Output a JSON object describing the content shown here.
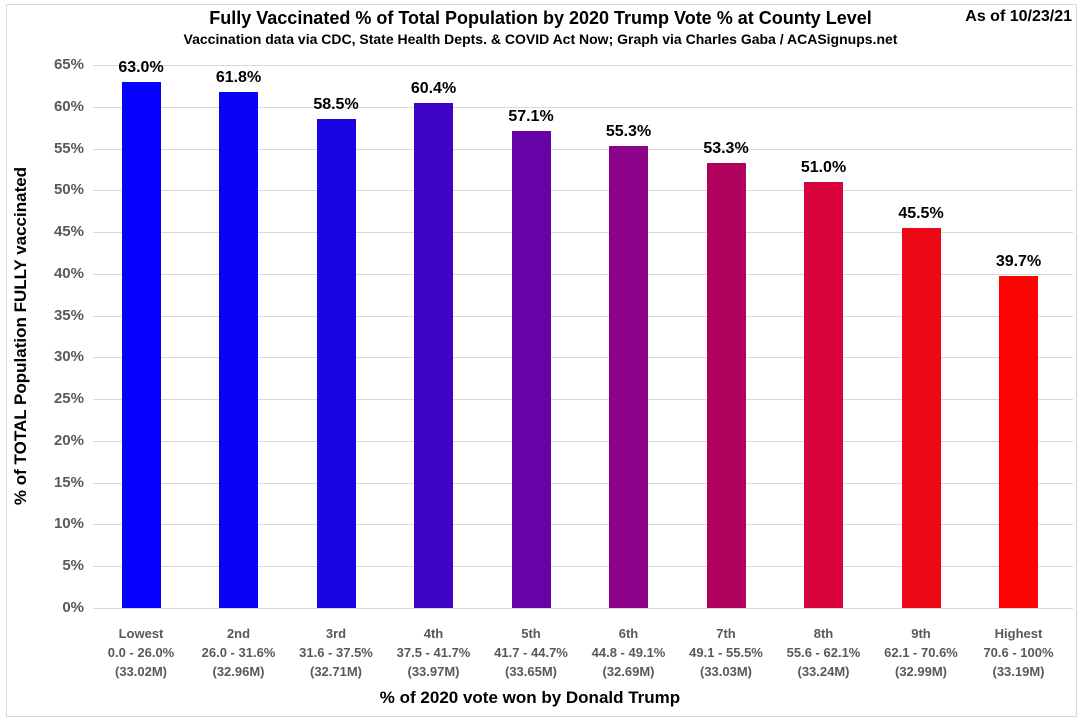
{
  "header": {
    "title": "Fully Vaccinated % of Total Population by 2020 Trump Vote % at County Level",
    "subtitle": "Vaccination data via CDC, State Health Depts. & COVID Act Now; Graph via Charles Gaba / ACASignups.net",
    "as_of": "As of 10/23/21"
  },
  "chart_data": {
    "type": "bar",
    "title": "Fully Vaccinated % of Total Population by 2020 Trump Vote % at County Level",
    "subtitle": "Vaccination data via CDC, State Health Depts. & COVID Act Now; Graph via Charles Gaba / ACASignups.net",
    "as_of": "As of 10/23/21",
    "xlabel": "% of 2020 vote won by Donald Trump",
    "ylabel": "% of TOTAL Population FULLY vaccinated",
    "ylim": [
      0,
      65
    ],
    "ytick_step": 5,
    "yticks": [
      "0%",
      "5%",
      "10%",
      "15%",
      "20%",
      "25%",
      "30%",
      "35%",
      "40%",
      "45%",
      "50%",
      "55%",
      "60%",
      "65%"
    ],
    "grid": true,
    "legend": "none",
    "categories": [
      {
        "decile": "Lowest",
        "trump_vote_range": "0.0 - 26.0%",
        "population": "(33.02M)"
      },
      {
        "decile": "2nd",
        "trump_vote_range": "26.0 - 31.6%",
        "population": "(32.96M)"
      },
      {
        "decile": "3rd",
        "trump_vote_range": "31.6 - 37.5%",
        "population": "(32.71M)"
      },
      {
        "decile": "4th",
        "trump_vote_range": "37.5 - 41.7%",
        "population": "(33.97M)"
      },
      {
        "decile": "5th",
        "trump_vote_range": "41.7 - 44.7%",
        "population": "(33.65M)"
      },
      {
        "decile": "6th",
        "trump_vote_range": "44.8 - 49.1%",
        "population": "(32.69M)"
      },
      {
        "decile": "7th",
        "trump_vote_range": "49.1 - 55.5%",
        "population": "(33.03M)"
      },
      {
        "decile": "8th",
        "trump_vote_range": "55.6 - 62.1%",
        "population": "(33.24M)"
      },
      {
        "decile": "9th",
        "trump_vote_range": "62.1 - 70.6%",
        "population": "(32.99M)"
      },
      {
        "decile": "Highest",
        "trump_vote_range": "70.6 - 100%",
        "population": "(33.19M)"
      }
    ],
    "values": [
      63.0,
      61.8,
      58.5,
      60.4,
      57.1,
      55.3,
      53.3,
      51.0,
      45.5,
      39.7
    ],
    "value_labels": [
      "63.0%",
      "61.8%",
      "58.5%",
      "60.4%",
      "57.1%",
      "55.3%",
      "53.3%",
      "51.0%",
      "45.5%",
      "39.7%"
    ],
    "bar_colors": [
      "#0402fc",
      "#0a02f4",
      "#1a04e4",
      "#3e04c6",
      "#6603a8",
      "#8c0288",
      "#b20260",
      "#d8023c",
      "#ee0817",
      "#fd0404"
    ],
    "colors": {
      "grid": "#d9d9d9",
      "axis_text": "#595959",
      "label_text": "#000000"
    }
  }
}
